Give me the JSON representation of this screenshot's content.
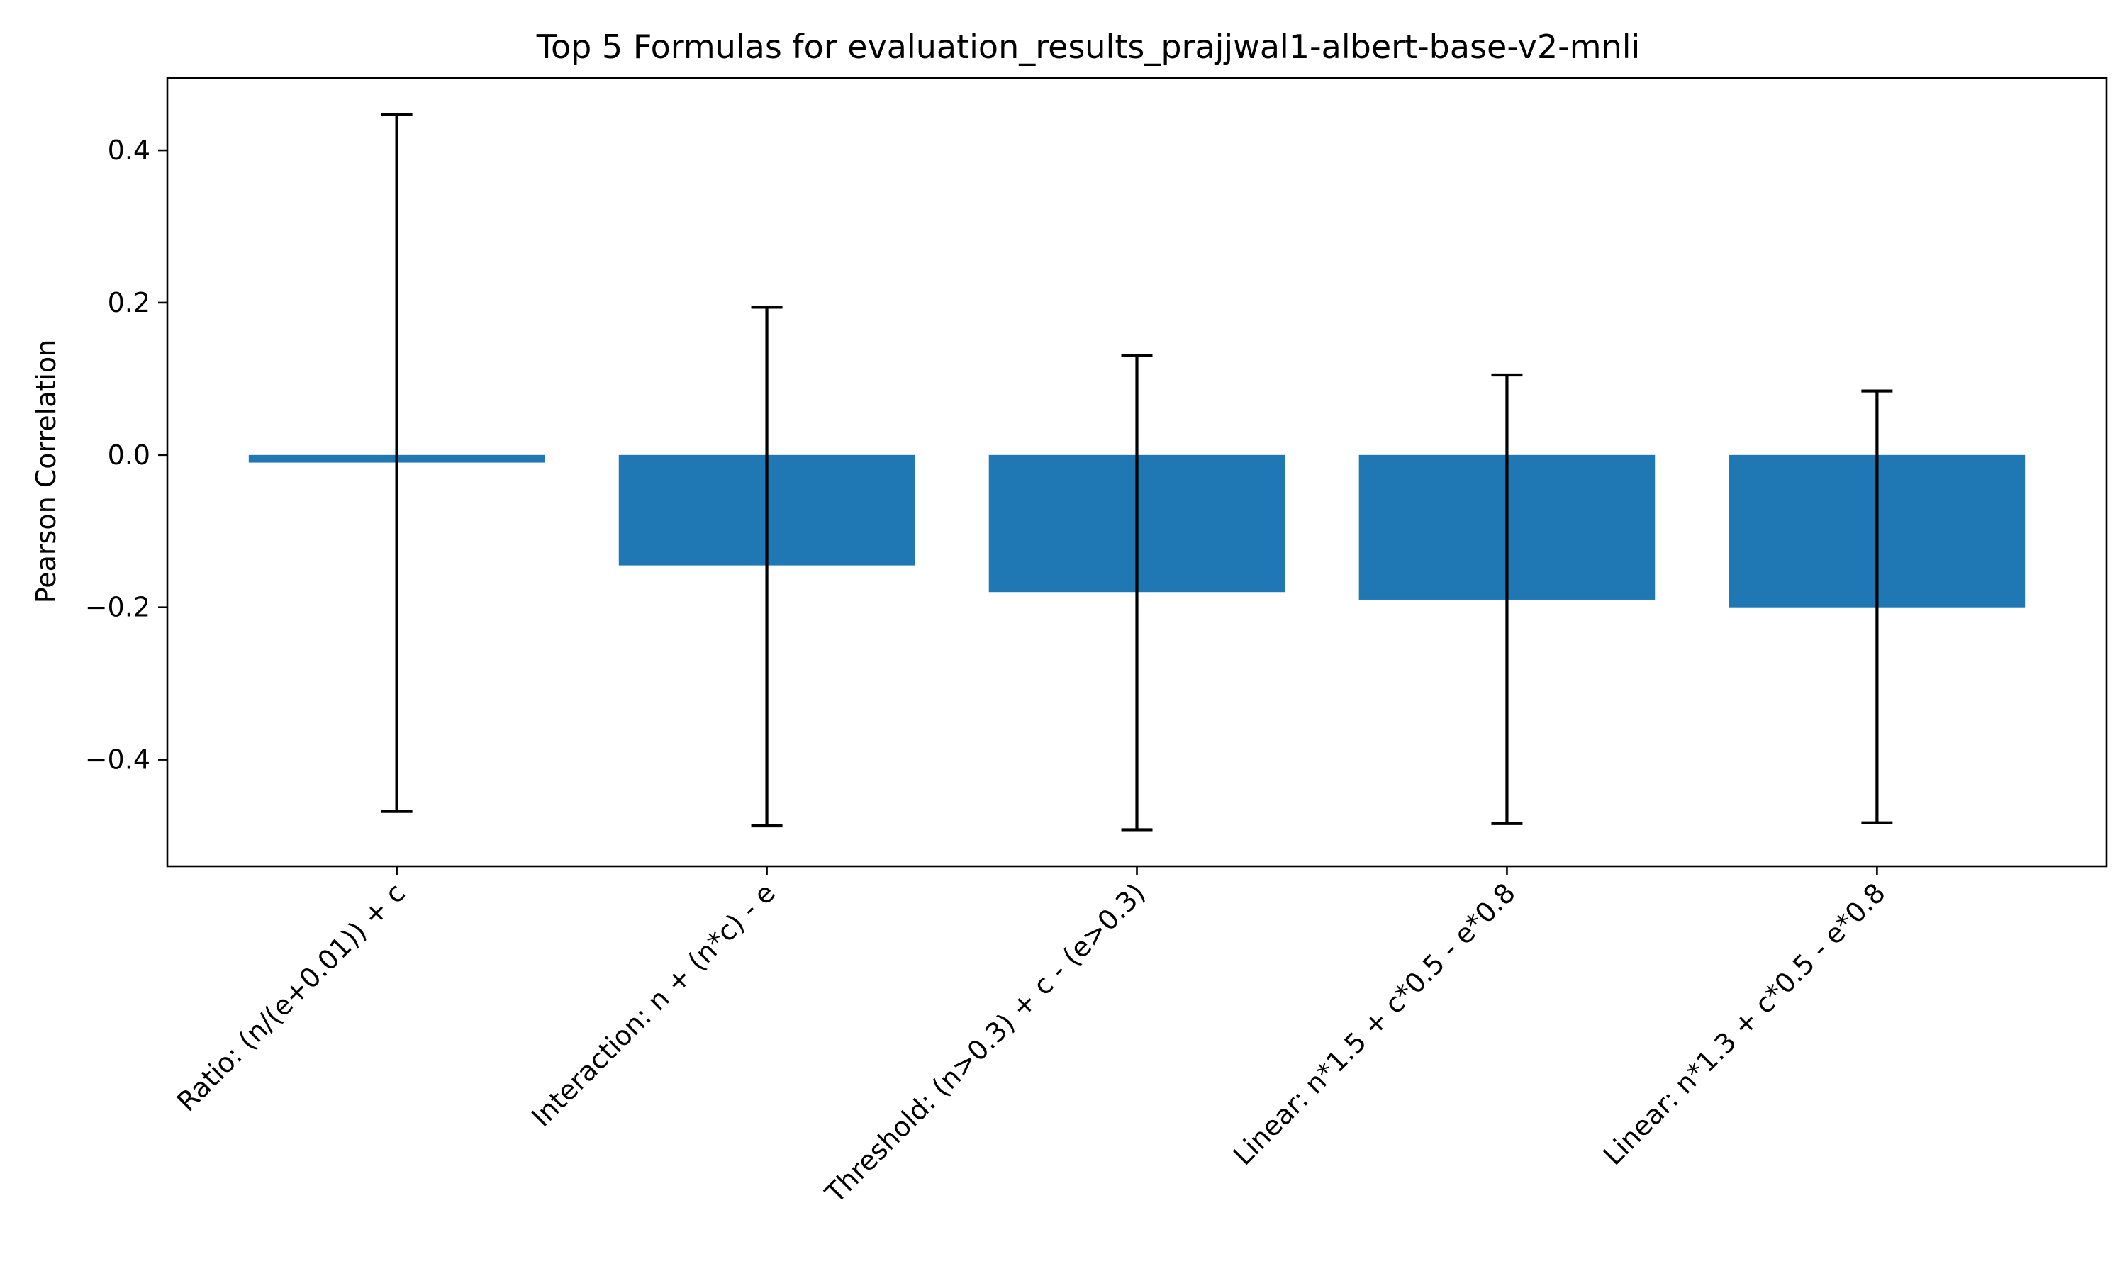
{
  "chart_data": {
    "type": "bar",
    "title": "Top 5 Formulas for evaluation_results_prajjwal1-albert-base-v2-mnli",
    "xlabel": "",
    "ylabel": "Pearson Correlation",
    "categories": [
      "Ratio: (n/(e+0.01)) + c",
      "Interaction: n + (n*c) - e",
      "Threshold: (n>0.3) + c - (e>0.3)",
      "Linear: n*1.5 + c*0.5 - e*0.8",
      "Linear: n*1.3 + c*0.5 - e*0.8"
    ],
    "values": [
      -0.01,
      -0.145,
      -0.18,
      -0.19,
      -0.2
    ],
    "error_low": [
      -0.468,
      -0.487,
      -0.492,
      -0.484,
      -0.483
    ],
    "error_high": [
      0.447,
      0.194,
      0.131,
      0.105,
      0.084
    ],
    "ylim": [
      -0.54,
      0.495
    ],
    "yticks": [
      -0.4,
      -0.2,
      0.0,
      0.2,
      0.4
    ],
    "ytick_labels": [
      "−0.4",
      "−0.2",
      "0.0",
      "0.2",
      "0.4"
    ],
    "grid": false,
    "bar_color": "#1f77b4"
  }
}
